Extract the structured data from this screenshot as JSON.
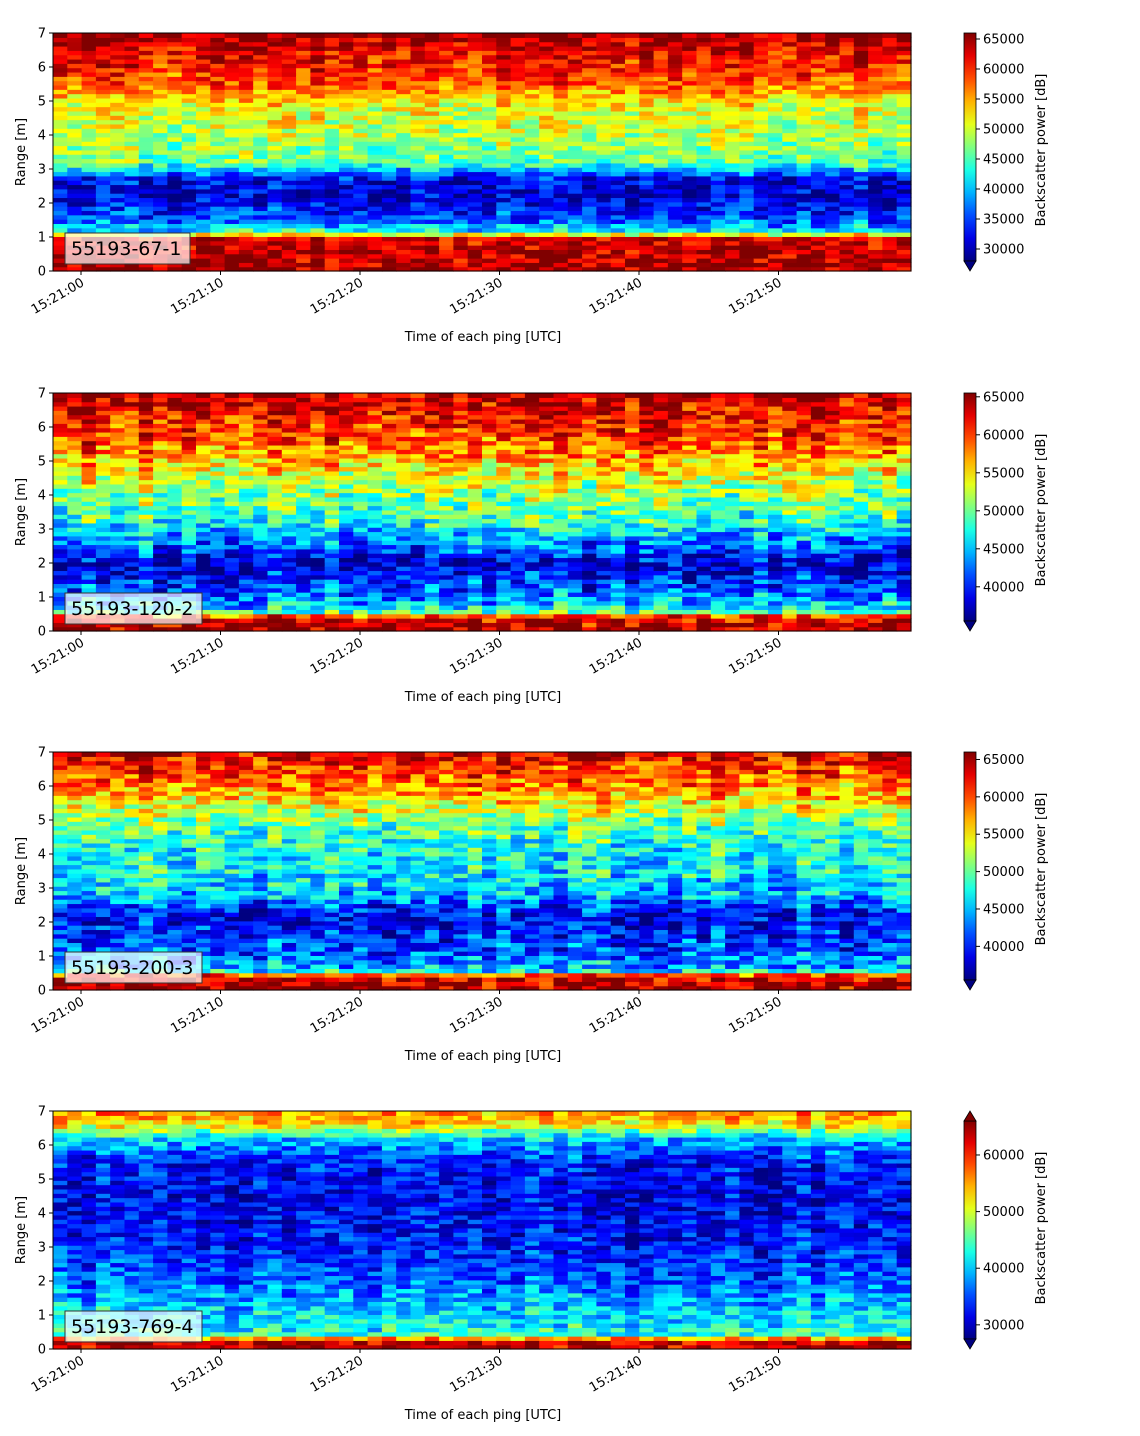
{
  "chart_data": [
    {
      "type": "heatmap",
      "label": "55193-67-1",
      "xlabel": "Time of each ping [UTC]",
      "ylabel": "Range [m]",
      "ylim": [
        0,
        7
      ],
      "yticks": [
        "0",
        "1",
        "2",
        "3",
        "4",
        "5",
        "6",
        "7"
      ],
      "xticks": [
        "15:21:00",
        "15:21:10",
        "15:21:20",
        "15:21:30",
        "15:21:40",
        "15:21:50"
      ],
      "colorbar": {
        "label": "Backscatter power [dB]",
        "range": [
          28000,
          66000
        ],
        "extend": "min",
        "ticks": [
          "30000",
          "35000",
          "40000",
          "45000",
          "50000",
          "55000",
          "60000",
          "65000"
        ]
      },
      "profile": [
        [
          0,
          65000
        ],
        [
          0.25,
          64000
        ],
        [
          1.0,
          63000
        ],
        [
          1.15,
          43000
        ],
        [
          1.5,
          36000
        ],
        [
          2.2,
          31000
        ],
        [
          2.7,
          32000
        ],
        [
          3.2,
          46000
        ],
        [
          4.0,
          49000
        ],
        [
          5.0,
          52000
        ],
        [
          5.5,
          58000
        ],
        [
          6.2,
          61000
        ],
        [
          6.8,
          64000
        ],
        [
          7,
          65000
        ]
      ]
    },
    {
      "type": "heatmap",
      "label": "55193-120-2",
      "xlabel": "Time of each ping [UTC]",
      "ylabel": "Range [m]",
      "ylim": [
        0,
        7
      ],
      "yticks": [
        "0",
        "1",
        "2",
        "3",
        "4",
        "5",
        "6",
        "7"
      ],
      "xticks": [
        "15:21:00",
        "15:21:10",
        "15:21:20",
        "15:21:30",
        "15:21:40",
        "15:21:50"
      ],
      "colorbar": {
        "label": "Backscatter power [dB]",
        "range": [
          35500,
          65500
        ],
        "extend": "min",
        "ticks": [
          "40000",
          "45000",
          "50000",
          "55000",
          "60000",
          "65000"
        ]
      },
      "profile": [
        [
          0,
          65000
        ],
        [
          0.4,
          63000
        ],
        [
          0.6,
          47000
        ],
        [
          1.2,
          42000
        ],
        [
          2.0,
          38000
        ],
        [
          2.6,
          43000
        ],
        [
          3.2,
          48000
        ],
        [
          4.0,
          51000
        ],
        [
          4.8,
          55000
        ],
        [
          5.5,
          59000
        ],
        [
          6.3,
          62000
        ],
        [
          7,
          65000
        ]
      ]
    },
    {
      "type": "heatmap",
      "label": "55193-200-3",
      "xlabel": "Time of each ping [UTC]",
      "ylabel": "Range [m]",
      "ylim": [
        0,
        7
      ],
      "yticks": [
        "0",
        "1",
        "2",
        "3",
        "4",
        "5",
        "6",
        "7"
      ],
      "xticks": [
        "15:21:00",
        "15:21:10",
        "15:21:20",
        "15:21:30",
        "15:21:40",
        "15:21:50"
      ],
      "colorbar": {
        "label": "Backscatter power [dB]",
        "range": [
          35500,
          66000
        ],
        "extend": "min",
        "ticks": [
          "40000",
          "45000",
          "50000",
          "55000",
          "60000",
          "65000"
        ]
      },
      "profile": [
        [
          0,
          65000
        ],
        [
          0.4,
          64000
        ],
        [
          0.6,
          45000
        ],
        [
          1.2,
          42000
        ],
        [
          2.2,
          39000
        ],
        [
          2.8,
          45000
        ],
        [
          3.5,
          47000
        ],
        [
          4.2,
          47500
        ],
        [
          5.0,
          51000
        ],
        [
          5.8,
          57000
        ],
        [
          6.5,
          61000
        ],
        [
          7,
          64000
        ]
      ]
    },
    {
      "type": "heatmap",
      "label": "55193-769-4",
      "xlabel": "Time of each ping [UTC]",
      "ylabel": "Range [m]",
      "ylim": [
        0,
        7
      ],
      "yticks": [
        "0",
        "1",
        "2",
        "3",
        "4",
        "5",
        "6",
        "7"
      ],
      "xticks": [
        "15:21:00",
        "15:21:10",
        "15:21:20",
        "15:21:30",
        "15:21:40",
        "15:21:50"
      ],
      "colorbar": {
        "label": "Backscatter power [dB]",
        "range": [
          27500,
          66000
        ],
        "extend": "both",
        "ticks": [
          "30000",
          "40000",
          "50000",
          "60000"
        ]
      },
      "profile": [
        [
          0,
          64000
        ],
        [
          0.25,
          62000
        ],
        [
          0.45,
          43000
        ],
        [
          1.2,
          40000
        ],
        [
          2.0,
          36000
        ],
        [
          3.0,
          33000
        ],
        [
          4.5,
          31500
        ],
        [
          5.5,
          33000
        ],
        [
          6.2,
          40000
        ],
        [
          6.6,
          52000
        ],
        [
          7,
          56000
        ]
      ]
    }
  ]
}
